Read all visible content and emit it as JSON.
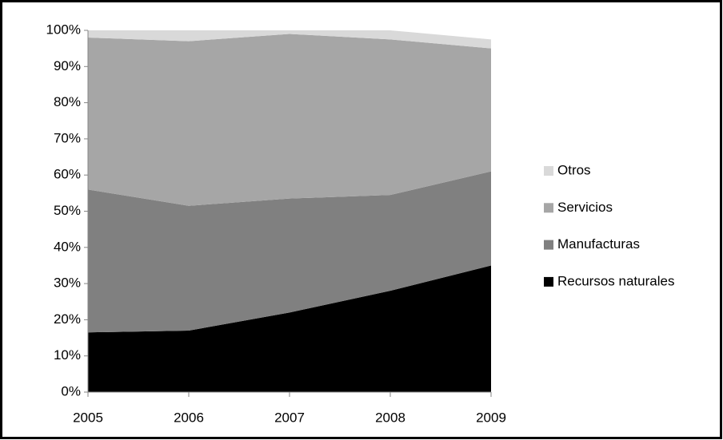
{
  "chart_data": {
    "type": "stacked_area",
    "categories": [
      "2005",
      "2006",
      "2007",
      "2008",
      "2009"
    ],
    "series": [
      {
        "name": "Recursos naturales",
        "color": "#000000",
        "values": [
          16.5,
          17,
          22,
          28,
          35
        ]
      },
      {
        "name": "Manufacturas",
        "color": "#808080",
        "values": [
          39.5,
          34.5,
          31.5,
          26.5,
          26
        ]
      },
      {
        "name": "Servicios",
        "color": "#a6a6a6",
        "values": [
          42,
          45.5,
          45.5,
          43,
          34
        ]
      },
      {
        "name": "Otros",
        "color": "#d9d9d9",
        "values": [
          2,
          3,
          1,
          2.5,
          2.5
        ]
      }
    ],
    "ylim": [
      0,
      100
    ],
    "yticks": [
      {
        "value": 0,
        "label": "0%"
      },
      {
        "value": 10,
        "label": "10%"
      },
      {
        "value": 20,
        "label": "20%"
      },
      {
        "value": 30,
        "label": "30%"
      },
      {
        "value": 40,
        "label": "40%"
      },
      {
        "value": 50,
        "label": "50%"
      },
      {
        "value": 60,
        "label": "60%"
      },
      {
        "value": 70,
        "label": "70%"
      },
      {
        "value": 80,
        "label": "80%"
      },
      {
        "value": 90,
        "label": "90%"
      },
      {
        "value": 100,
        "label": "100%"
      }
    ],
    "grid": false,
    "legend": "right"
  }
}
